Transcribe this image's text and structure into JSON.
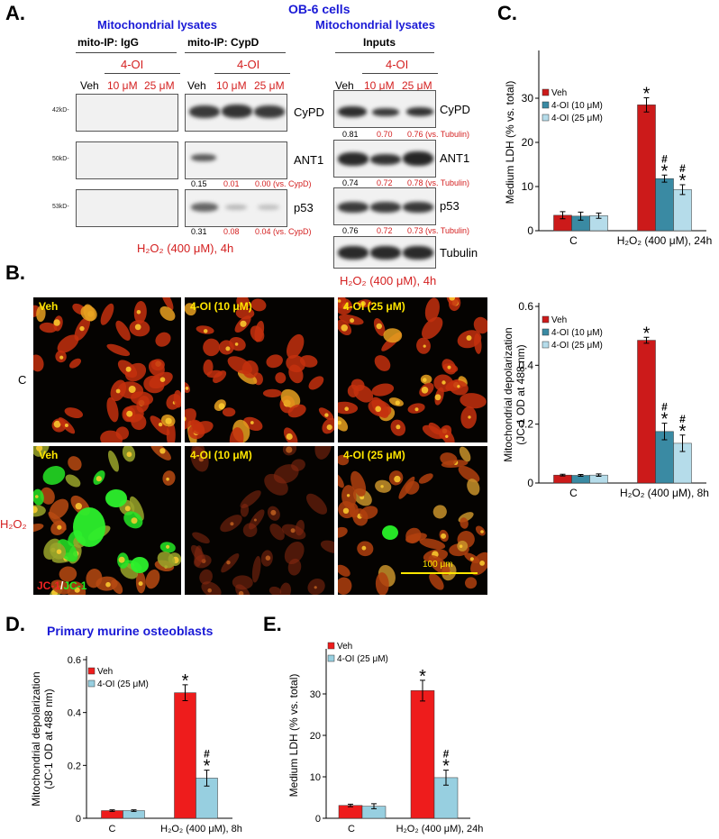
{
  "panelA": {
    "letter": "A.",
    "title": "OB-6 cells",
    "left_group_title": "Mitochondrial lysates",
    "right_group_title": "Mitochondrial lysates",
    "ip_igg": "mito-IP: IgG",
    "ip_cypd": "mito-IP: CypD",
    "inputs": "Inputs",
    "treatment": "4-OI",
    "lanes": [
      "Veh",
      "10 μM",
      "25 μM"
    ],
    "markers": [
      "42kD-",
      "50kD-",
      "53kD-"
    ],
    "blot_labels": [
      "CyPD",
      "ANT1",
      "p53"
    ],
    "inputs_labels": [
      "CyPD",
      "ANT1",
      "p53",
      "Tubulin"
    ],
    "ip_ant1_quant": [
      "0.15",
      "0.01",
      "0.00 (vs. CypD)"
    ],
    "ip_p53_quant": [
      "0.31",
      "0.08",
      "0.04 (vs. CypD)"
    ],
    "in_cypd_quant": [
      "0.81",
      "0.70",
      "0.76 (vs. Tubulin)"
    ],
    "in_ant1_quant": [
      "0.74",
      "0.72",
      "0.78 (vs. Tubulin)"
    ],
    "in_p53_quant": [
      "0.76",
      "0.72",
      "0.73 (vs. Tubulin)"
    ],
    "condition": "H₂O₂ (400 μM), 4h"
  },
  "panelB": {
    "letter": "B.",
    "row_labels": [
      "C",
      "H₂O₂"
    ],
    "col_labels": [
      "Veh",
      "4-OI (10 μM)",
      "4-OI (25 μM)"
    ],
    "stain_red": "JC-1",
    "stain_sep": "/",
    "stain_green": "JC-1",
    "scale": "100 μm"
  },
  "colors": {
    "veh": "#cc1a1a",
    "oi10": "#3a8aa3",
    "oi25": "#b5dcea",
    "veh_bright": "#ee1c1c",
    "oi25_alt": "#97cfe0"
  },
  "chart_data": [
    {
      "id": "C",
      "type": "bar",
      "panel_letter": "C.",
      "ylabel": "Medium LDH (% vs. total)",
      "ylim": [
        0,
        40
      ],
      "yticks": [
        0,
        10,
        20,
        30
      ],
      "categories": [
        "C",
        "H₂O₂ (400 μM), 24h"
      ],
      "series": [
        {
          "name": "Veh",
          "values": [
            3.5,
            28.5
          ],
          "errors": [
            0.8,
            1.6
          ]
        },
        {
          "name": "4-OI (10 μM)",
          "values": [
            3.3,
            11.8
          ],
          "errors": [
            0.9,
            0.8
          ]
        },
        {
          "name": "4-OI (25 μM)",
          "values": [
            3.4,
            9.3
          ],
          "errors": [
            0.6,
            1.1
          ]
        }
      ],
      "annotations": [
        [
          "",
          "*"
        ],
        [
          "",
          "#*"
        ],
        [
          "",
          "#*"
        ]
      ],
      "legend": "top-left"
    },
    {
      "id": "B-chart",
      "type": "bar",
      "ylabel": "Mitochondrial depolarization",
      "ylabel2": "(JC-1 OD at 488 nm)",
      "ylim": [
        0,
        0.6
      ],
      "yticks": [
        0,
        0.2,
        0.4,
        0.6
      ],
      "categories": [
        "C",
        "H₂O₂ (400 μM), 8h"
      ],
      "series": [
        {
          "name": "Veh",
          "values": [
            0.027,
            0.485
          ],
          "errors": [
            0.003,
            0.01
          ]
        },
        {
          "name": "4-OI (10 μM)",
          "values": [
            0.026,
            0.175
          ],
          "errors": [
            0.003,
            0.028
          ]
        },
        {
          "name": "4-OI (25 μM)",
          "values": [
            0.027,
            0.135
          ],
          "errors": [
            0.004,
            0.028
          ]
        }
      ],
      "annotations": [
        [
          "",
          "*"
        ],
        [
          "",
          "#*"
        ],
        [
          "",
          "#*"
        ]
      ],
      "legend": "top-left"
    },
    {
      "id": "D",
      "type": "bar",
      "panel_letter": "D.",
      "title": "Primary murine osteoblasts",
      "ylabel": "Mitochondrial depolarization",
      "ylabel2": "(JC-1 OD at 488 nm)",
      "ylim": [
        0,
        0.6
      ],
      "yticks": [
        0,
        0.2,
        0.4,
        0.6
      ],
      "categories": [
        "C",
        "H₂O₂ (400 μM), 8h"
      ],
      "series": [
        {
          "name": "Veh",
          "values": [
            0.029,
            0.475
          ],
          "errors": [
            0.003,
            0.03
          ]
        },
        {
          "name": "4-OI (25 μM)",
          "values": [
            0.029,
            0.152
          ],
          "errors": [
            0.003,
            0.03
          ]
        }
      ],
      "annotations": [
        [
          "",
          "*"
        ],
        [
          "",
          "#*"
        ]
      ],
      "legend": "top-left"
    },
    {
      "id": "E",
      "type": "bar",
      "panel_letter": "E.",
      "ylabel": "Medium LDH (% vs. total)",
      "ylim": [
        0,
        40
      ],
      "yticks": [
        0,
        10,
        20,
        30
      ],
      "categories": [
        "C",
        "H₂O₂ (400 μM), 24h"
      ],
      "series": [
        {
          "name": "Veh",
          "values": [
            3.1,
            30.8
          ],
          "errors": [
            0.3,
            2.5
          ]
        },
        {
          "name": "4-OI (25 μM)",
          "values": [
            2.9,
            9.8
          ],
          "errors": [
            0.6,
            1.8
          ]
        }
      ],
      "annotations": [
        [
          "",
          "*"
        ],
        [
          "",
          "#*"
        ]
      ],
      "legend": "top-left"
    }
  ]
}
